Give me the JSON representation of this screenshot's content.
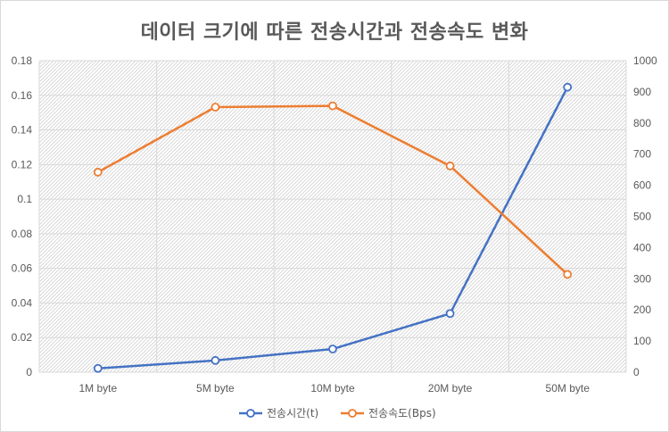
{
  "chart_data": {
    "type": "line",
    "title": "데이터 크기에 따른 전송시간과 전송속도 변화",
    "categories": [
      "1M byte",
      "5M byte",
      "10M byte",
      "20M byte",
      "50M byte"
    ],
    "series": [
      {
        "name": "전송시간(t)",
        "axis": "left",
        "color": "#4472c4",
        "values": [
          0.0022,
          0.0068,
          0.0134,
          0.0339,
          0.1647
        ]
      },
      {
        "name": "전송속도(Bps)",
        "axis": "right",
        "color": "#ed7d31",
        "values": [
          642,
          851,
          855,
          662,
          314
        ]
      }
    ],
    "y_left": {
      "min": 0,
      "max": 0.18,
      "ticks": [
        "0",
        "0.02",
        "0.04",
        "0.06",
        "0.08",
        "0.1",
        "0.12",
        "0.14",
        "0.16",
        "0.18"
      ]
    },
    "y_right": {
      "min": 0,
      "max": 1000,
      "ticks": [
        "0",
        "100",
        "200",
        "300",
        "400",
        "500",
        "600",
        "700",
        "800",
        "900",
        "1000"
      ]
    },
    "grid": true,
    "legend_position": "bottom"
  }
}
